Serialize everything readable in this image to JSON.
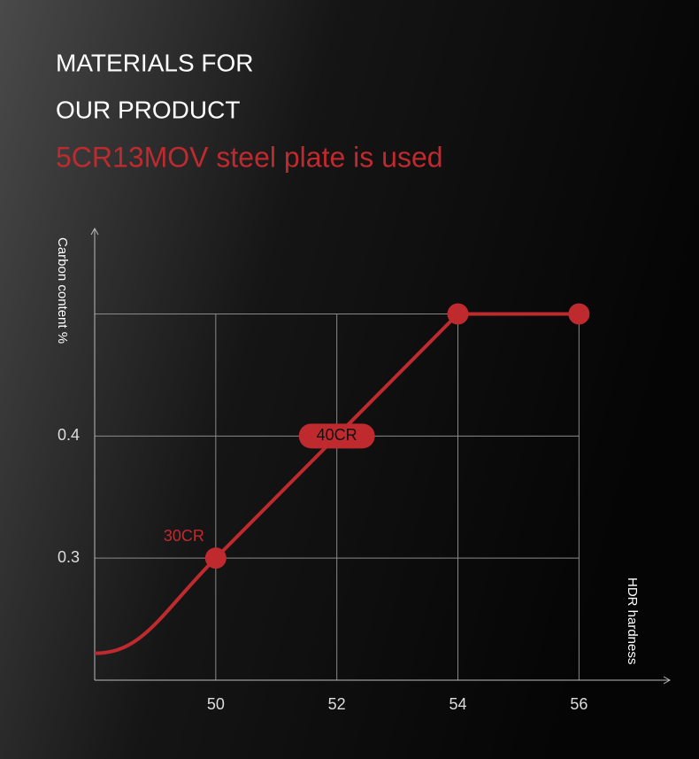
{
  "chart_data": {
    "type": "line",
    "title": [
      "MATERIALS FOR",
      "OUR PRODUCT"
    ],
    "subtitle": "5CR13MOV steel plate is used",
    "y_label": "Carbon content %",
    "x_label": "HDR hardness",
    "x": [
      48,
      50,
      52,
      54,
      56
    ],
    "series": [
      {
        "color": "#bf2a2f",
        "values": [
          0.222,
          0.3,
          0.4,
          0.5,
          0.5
        ],
        "markers": [
          false,
          true,
          false,
          true,
          true
        ],
        "point_labels": [
          null,
          "30CR",
          "40CR",
          null,
          null
        ]
      }
    ],
    "xlim": [
      48,
      57.5
    ],
    "ylim": [
      0.2,
      0.57
    ],
    "xticks": [
      50,
      52,
      54,
      56
    ],
    "yticks": [
      0.3,
      0.4,
      {
        "value": 0.5,
        "label": null
      }
    ],
    "grid": true
  }
}
